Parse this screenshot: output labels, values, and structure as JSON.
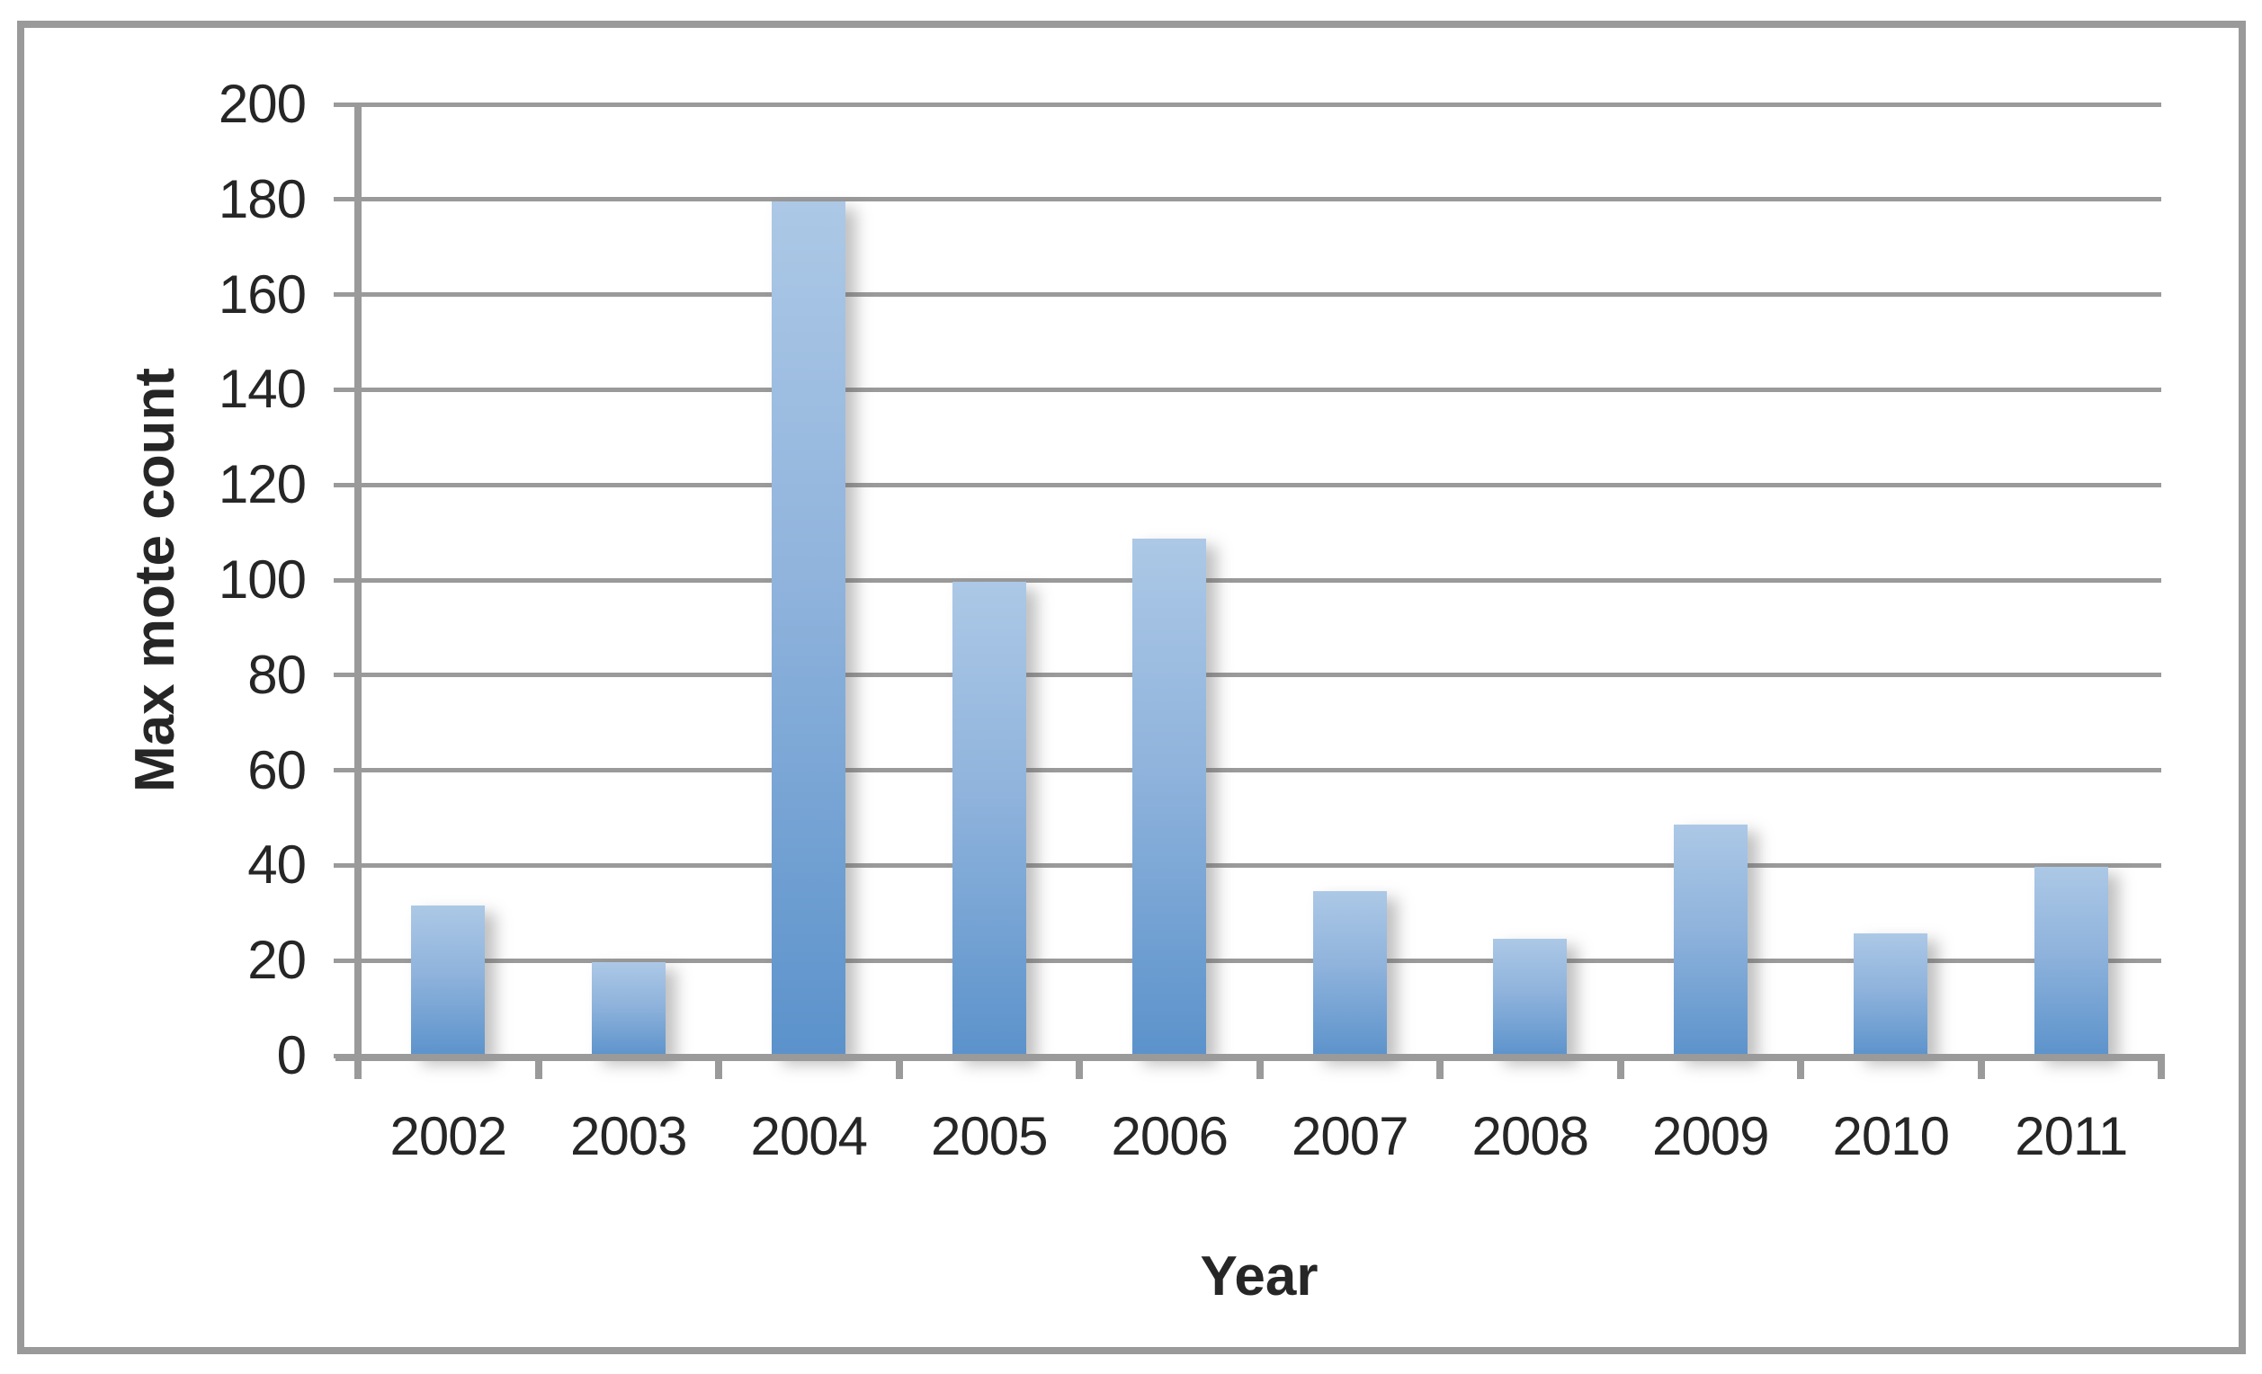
{
  "window": {
    "background": "#ffffff",
    "border_color": "#9a9a9a"
  },
  "chart_data": {
    "type": "bar",
    "title": "",
    "categories": [
      "2002",
      "2003",
      "2004",
      "2005",
      "2006",
      "2007",
      "2008",
      "2009",
      "2010",
      "2011"
    ],
    "values": [
      32,
      20,
      180,
      100,
      109,
      35,
      25,
      49,
      26,
      40
    ],
    "xlabel": "Year",
    "ylabel": "Max mote count",
    "ylim": [
      0,
      200
    ],
    "ytick_step": 20,
    "grid": true,
    "legend": "none",
    "bar_gradient_top": "#acc8e6",
    "bar_gradient_bottom": "#5b92cb",
    "gridline_color": "#9a9a9a",
    "axis_color": "#9a9a9a",
    "text_color": "#262626"
  }
}
